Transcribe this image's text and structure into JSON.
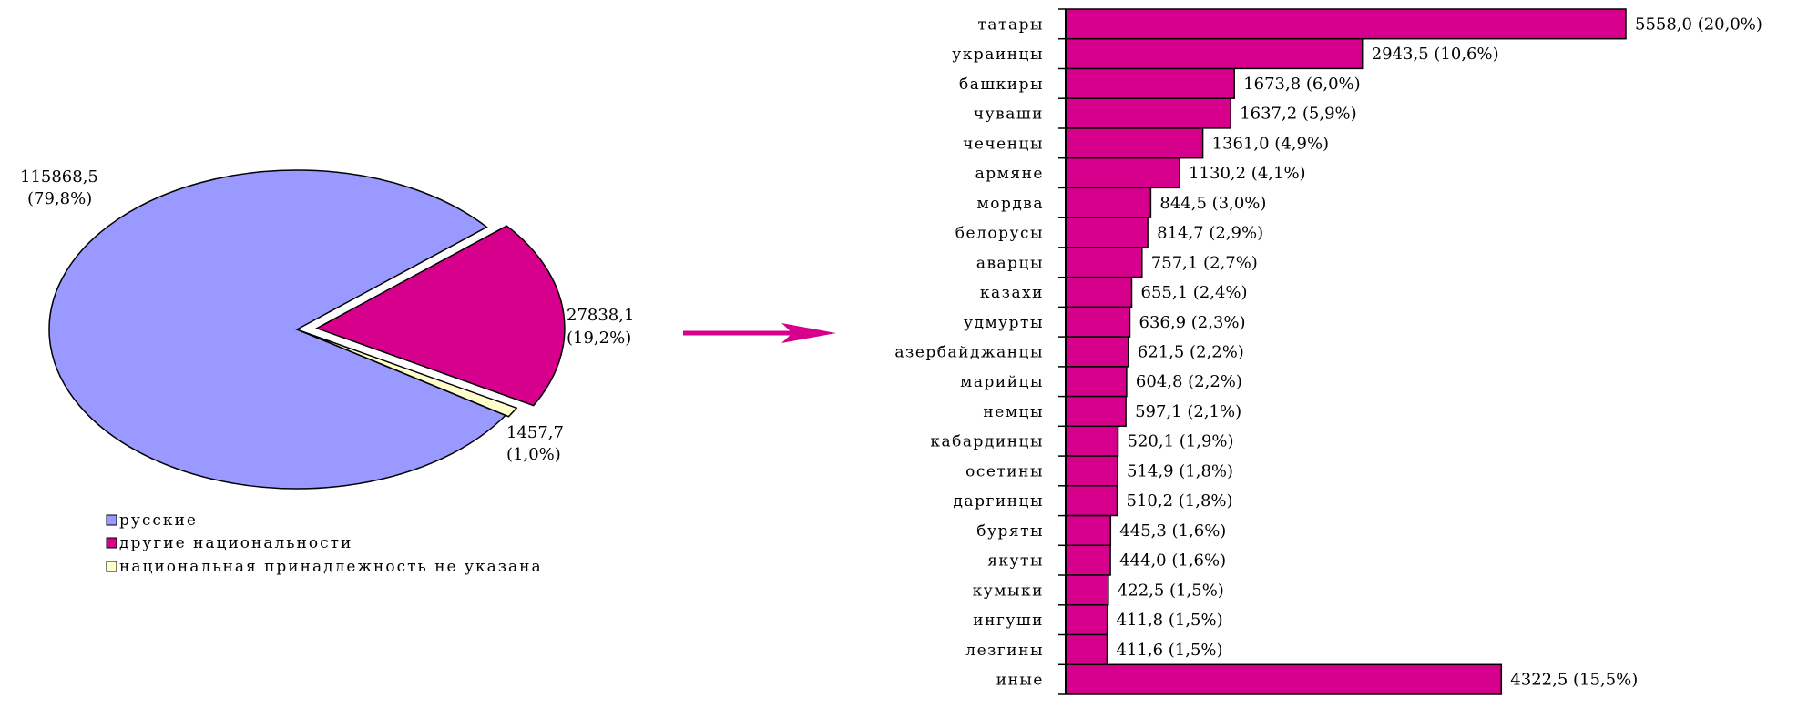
{
  "colors": {
    "russians": "#9999ff",
    "others": "#d6008c",
    "unspecified": "#ffffcc",
    "bar": "#d6008c",
    "arrow": "#d6008c",
    "outline": "#000000"
  },
  "arrow_icon": "right-arrow-icon",
  "chart_data": [
    {
      "type": "pie",
      "slices": [
        {
          "name": "русские",
          "value": 115868.5,
          "percent": 79.8,
          "value_label": "115868,5",
          "percent_label": "(79,8%)",
          "color": "#9999ff",
          "exploded": false
        },
        {
          "name": "другие национальности",
          "value": 27838.1,
          "percent": 19.2,
          "value_label": "27838,1",
          "percent_label": "(19,2%)",
          "color": "#d6008c",
          "exploded": true
        },
        {
          "name": "национальная принадлежность не указана",
          "value": 1457.7,
          "percent": 1.0,
          "value_label": "1457,7",
          "percent_label": "(1,0%)",
          "color": "#ffffcc",
          "exploded": false
        }
      ],
      "legend": [
        "русские",
        "другие национальности",
        "национальная принадлежность не указана"
      ],
      "legend_position": "bottom-left"
    },
    {
      "type": "bar",
      "orientation": "horizontal",
      "categories": [
        "татары",
        "украинцы",
        "башкиры",
        "чуваши",
        "чеченцы",
        "армяне",
        "мордва",
        "белорусы",
        "аварцы",
        "казахи",
        "удмурты",
        "азербайджанцы",
        "марийцы",
        "немцы",
        "кабардинцы",
        "осетины",
        "даргинцы",
        "буряты",
        "якуты",
        "кумыки",
        "ингуши",
        "лезгины",
        "иные"
      ],
      "values": [
        5558.0,
        2943.5,
        1673.8,
        1637.2,
        1361.0,
        1130.2,
        844.5,
        814.7,
        757.1,
        655.1,
        636.9,
        621.5,
        604.8,
        597.1,
        520.1,
        514.9,
        510.2,
        445.3,
        444.0,
        422.5,
        411.8,
        411.6,
        4322.5
      ],
      "data_labels": [
        "5558,0 (20,0%)",
        "2943,5 (10,6%)",
        "1673,8 (6,0%)",
        "1637,2 (5,9%)",
        "1361,0 (4,9%)",
        "1130,2 (4,1%)",
        "844,5 (3,0%)",
        "814,7 (2,9%)",
        "757,1 (2,7%)",
        "655,1 (2,4%)",
        "636,9 (2,3%)",
        "621,5 (2,2%)",
        "604,8 (2,2%)",
        "597,1 (2,1%)",
        "520,1 (1,9%)",
        "514,9 (1,8%)",
        "510,2 (1,8%)",
        "445,3 (1,6%)",
        "444,0 (1,6%)",
        "422,5 (1,5%)",
        "411,8 (1,5%)",
        "411,6 (1,5%)",
        "4322,5 (15,5%)"
      ],
      "xlim": [
        0,
        5558.0
      ],
      "grid": false,
      "legend": "none"
    }
  ]
}
